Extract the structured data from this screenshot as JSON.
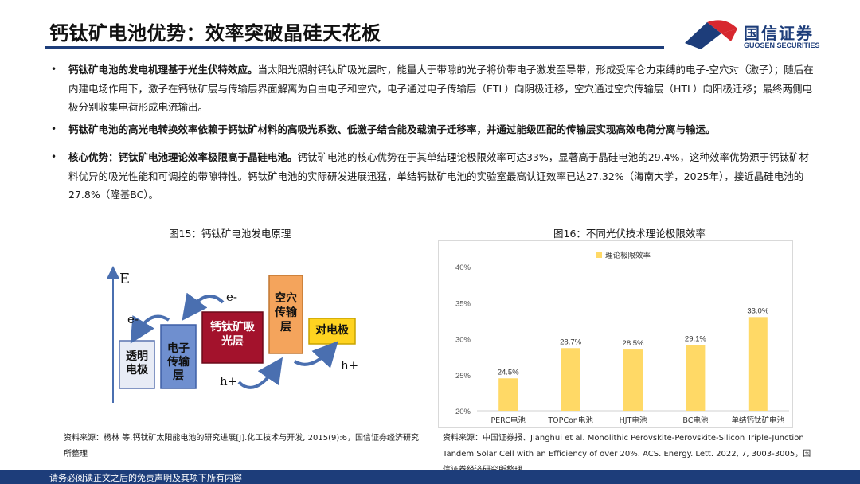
{
  "header": {
    "title": "钙钛矿电池优势：效率突破晶硅天花板",
    "logo_cn": "国信证券",
    "logo_en": "GUOSEN SECURITIES"
  },
  "bullets": [
    {
      "lead": "钙钛矿电池的发电机理基于光生伏特效应。",
      "text": "当太阳光照射钙钛矿吸光层时，能量大于带隙的光子将价带电子激发至导带，形成受库仑力束缚的电子-空穴对（激子）；随后在内建电场作用下，激子在钙钛矿层与传输层界面解离为自由电子和空穴，电子通过电子传输层（ETL）向阴极迁移，空穴通过空穴传输层（HTL）向阳极迁移；最终两侧电极分别收集电荷形成电流输出。"
    },
    {
      "lead": "钙钛矿电池的高光电转换效率依赖于钙钛矿材料的高吸光系数、低激子结合能及载流子迁移率，并通过能级匹配的传输层实现高效电荷分离与输运。",
      "text": ""
    },
    {
      "lead": "核心优势：钙钛矿电池理论效率极限高于晶硅电池。",
      "text": "钙钛矿电池的核心优势在于其单结理论极限效率可达33%，显著高于晶硅电池的29.4%，这种效率优势源于钙钛矿材料优异的吸光性能和可调控的带隙特性。钙钛矿电池的实际研发进展迅猛，单结钙钛矿电池的实验室最高认证效率已达27.32%（海南大学，2025年），接近晶硅电池的27.8%（隆基BC）。"
    }
  ],
  "figure15": {
    "title": "图15：钙钛矿电池发电原理",
    "labels": {
      "axis": "E",
      "electron1": "e-",
      "electron2": "e-",
      "hole1": "h+",
      "hole2": "h+",
      "box_transparent": "透明电极",
      "box_etl": "电子传输层",
      "box_absorber": "钙钛矿吸光层",
      "box_htl": "空穴传输层",
      "box_counter": "对电极"
    },
    "source": "资料来源：杨林 等.钙钛矿太阳能电池的研究进展[J].化工技术与开发, 2015(9):6，国信证券经济研究所整理"
  },
  "figure16": {
    "title": "图16：不同光伏技术理论极限效率",
    "source": "资料来源：中国证券报、Jianghui et al. Monolithic Perovskite-Perovskite-Silicon Triple-Junction Tandem Solar Cell with an Efficiency of over 20%. ACS. Energy. Lett. 2022, 7, 3003-3005，国信证券经济研究所整理"
  },
  "chart_data": {
    "type": "bar",
    "categories": [
      "PERC电池",
      "TOPCon电池",
      "HJT电池",
      "BC电池",
      "单结钙钛矿电池"
    ],
    "series": [
      {
        "name": "理论极限效率",
        "values": [
          24.5,
          28.7,
          28.5,
          29.1,
          33.0
        ]
      }
    ],
    "value_labels": [
      "24.5%",
      "28.7%",
      "28.5%",
      "29.1%",
      "33.0%"
    ],
    "ylim": [
      20,
      40
    ],
    "yticks": [
      "20%",
      "25%",
      "30%",
      "35%",
      "40%"
    ],
    "bar_color": "#FFD966",
    "legend_position": "top-center",
    "grid": false
  },
  "footer": {
    "disclaimer": "请务必阅读正文之后的免责声明及其项下所有内容"
  },
  "colors": {
    "brand_blue": "#1d3d7a",
    "brand_red": "#d7282f",
    "absorber": "#a3122c",
    "etl": "#6f8fcf",
    "htl": "#f4a45c",
    "counter": "#ffd320"
  }
}
